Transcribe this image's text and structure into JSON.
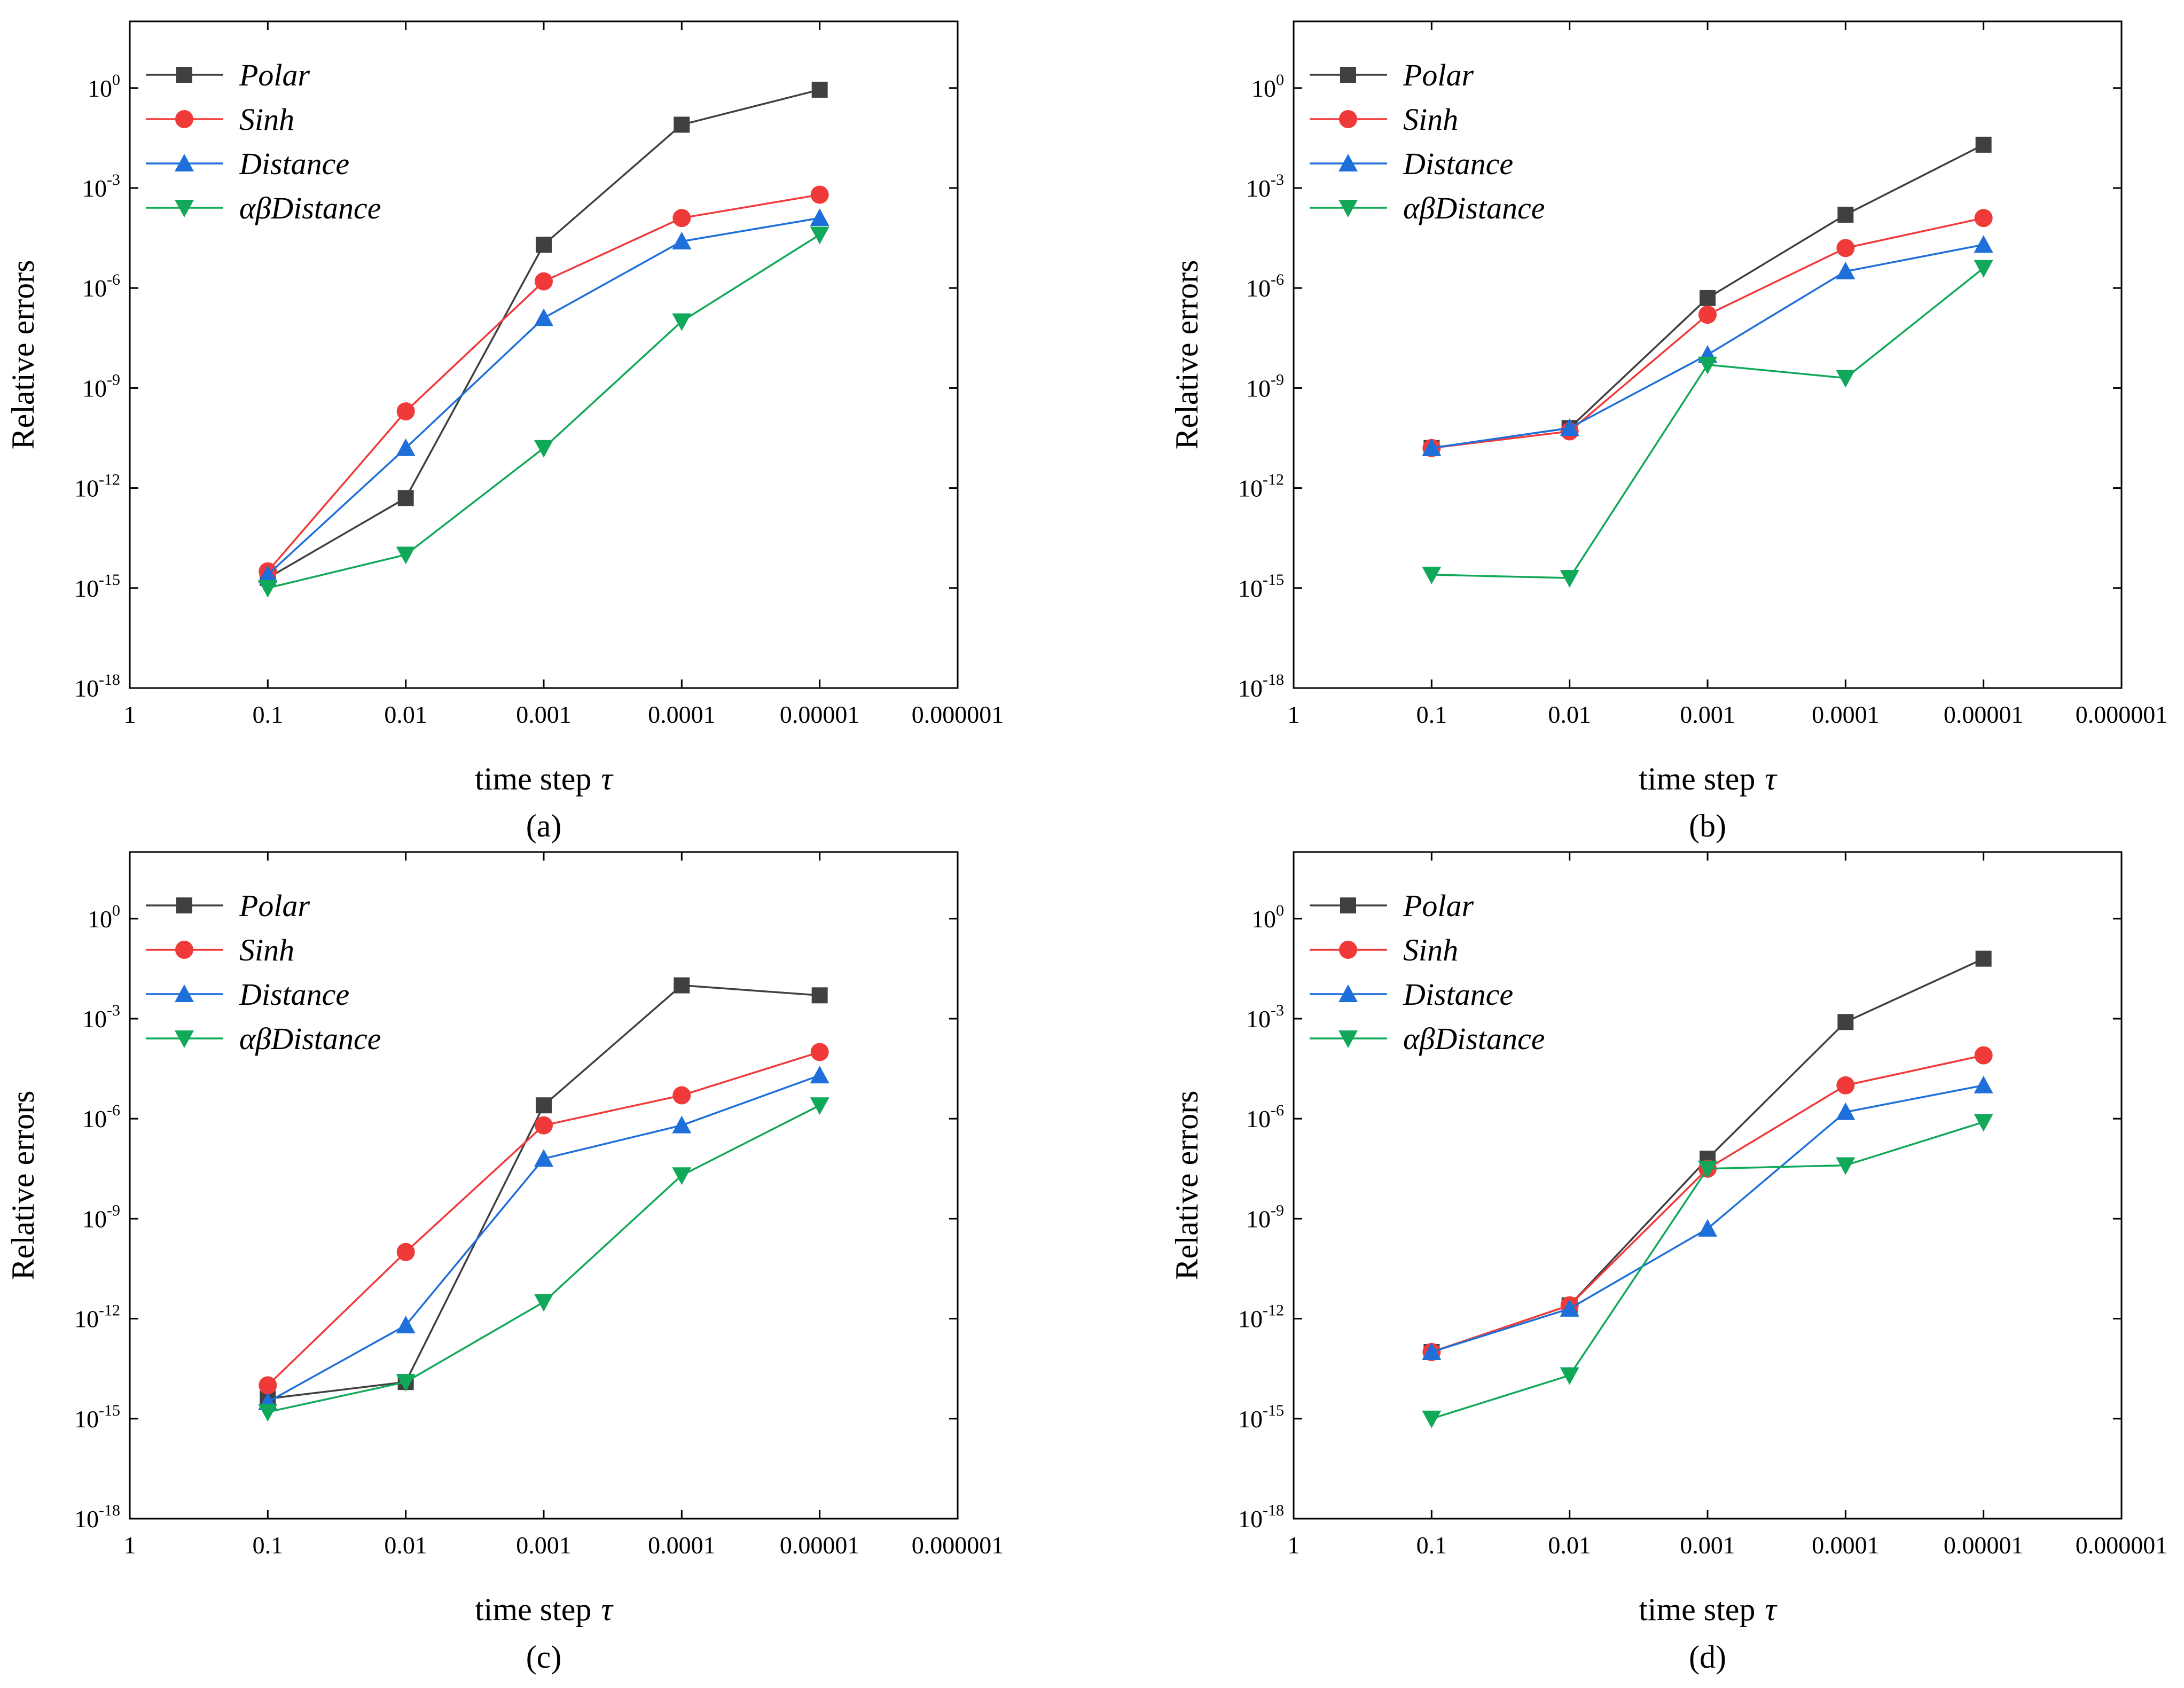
{
  "chart_data": [
    {
      "id": "a",
      "caption": "(a)",
      "type": "line",
      "xscale": "log-reversed",
      "yscale": "log",
      "xlabel": "time step",
      "xlabel_symbol": "τ",
      "ylabel": "Relative errors",
      "xlim": [
        1,
        1e-06
      ],
      "ylim_exponents": [
        -18,
        2
      ],
      "x_ticks": [
        "1",
        "0.1",
        "0.01",
        "0.001",
        "0.0001",
        "0.00001",
        "0.000001"
      ],
      "y_tick_exponents": [
        "-18",
        "-15",
        "-12",
        "-9",
        "-6",
        "-3",
        "0"
      ],
      "legend_position": "top-left",
      "x": [
        0.1,
        0.01,
        0.001,
        0.0001,
        1e-05
      ],
      "series": [
        {
          "name": "Polar",
          "color": "#404040",
          "marker": "square",
          "log10_values": [
            -14.7,
            -12.3,
            -4.7,
            -1.1,
            -0.05
          ]
        },
        {
          "name": "Sinh",
          "color": "#f03a3a",
          "marker": "circle",
          "log10_values": [
            -14.5,
            -9.7,
            -5.8,
            -3.9,
            -3.2
          ]
        },
        {
          "name": "Distance",
          "color": "#1e6fd9",
          "marker": "triangle-up",
          "log10_values": [
            -14.6,
            -10.8,
            -6.9,
            -4.6,
            -3.9
          ]
        },
        {
          "name": "αβDistance",
          "color": "#12a85a",
          "marker": "triangle-down",
          "log10_values": [
            -15.0,
            -14.0,
            -10.8,
            -7.0,
            -4.4
          ]
        }
      ]
    },
    {
      "id": "b",
      "caption": "(b)",
      "type": "line",
      "xscale": "log-reversed",
      "yscale": "log",
      "xlabel": "time step",
      "xlabel_symbol": "τ",
      "ylabel": "Relative errors",
      "xlim": [
        1,
        1e-06
      ],
      "ylim_exponents": [
        -18,
        2
      ],
      "x_ticks": [
        "1",
        "0.1",
        "0.01",
        "0.001",
        "0.0001",
        "0.00001",
        "0.000001"
      ],
      "y_tick_exponents": [
        "-18",
        "-15",
        "-12",
        "-9",
        "-6",
        "-3",
        "0"
      ],
      "legend_position": "top-left",
      "x": [
        0.1,
        0.01,
        0.001,
        0.0001,
        1e-05
      ],
      "series": [
        {
          "name": "Polar",
          "color": "#404040",
          "marker": "square",
          "log10_values": [
            -10.8,
            -10.2,
            -6.3,
            -3.8,
            -1.7
          ]
        },
        {
          "name": "Sinh",
          "color": "#f03a3a",
          "marker": "circle",
          "log10_values": [
            -10.8,
            -10.3,
            -6.8,
            -4.8,
            -3.9
          ]
        },
        {
          "name": "Distance",
          "color": "#1e6fd9",
          "marker": "triangle-up",
          "log10_values": [
            -10.8,
            -10.2,
            -8.0,
            -5.5,
            -4.7
          ]
        },
        {
          "name": "αβDistance",
          "color": "#12a85a",
          "marker": "triangle-down",
          "log10_values": [
            -14.6,
            -14.7,
            -8.3,
            -8.7,
            -5.4
          ]
        }
      ]
    },
    {
      "id": "c",
      "caption": "(c)",
      "type": "line",
      "xscale": "log-reversed",
      "yscale": "log",
      "xlabel": "time step",
      "xlabel_symbol": "τ",
      "ylabel": "Relative errors",
      "xlim": [
        1,
        1e-06
      ],
      "ylim_exponents": [
        -18,
        2
      ],
      "x_ticks": [
        "1",
        "0.1",
        "0.01",
        "0.001",
        "0.0001",
        "0.00001",
        "0.000001"
      ],
      "y_tick_exponents": [
        "-18",
        "-15",
        "-12",
        "-9",
        "-6",
        "-3",
        "0"
      ],
      "legend_position": "top-left",
      "x": [
        0.1,
        0.01,
        0.001,
        0.0001,
        1e-05
      ],
      "series": [
        {
          "name": "Polar",
          "color": "#404040",
          "marker": "square",
          "log10_values": [
            -14.4,
            -13.9,
            -5.6,
            -2.0,
            -2.3
          ]
        },
        {
          "name": "Sinh",
          "color": "#f03a3a",
          "marker": "circle",
          "log10_values": [
            -14.0,
            -10.0,
            -6.2,
            -5.3,
            -4.0
          ]
        },
        {
          "name": "Distance",
          "color": "#1e6fd9",
          "marker": "triangle-up",
          "log10_values": [
            -14.5,
            -12.2,
            -7.2,
            -6.2,
            -4.7
          ]
        },
        {
          "name": "αβDistance",
          "color": "#12a85a",
          "marker": "triangle-down",
          "log10_values": [
            -14.8,
            -13.9,
            -11.5,
            -7.7,
            -5.6
          ]
        }
      ]
    },
    {
      "id": "d",
      "caption": "(d)",
      "type": "line",
      "xscale": "log-reversed",
      "yscale": "log",
      "xlabel": "time step",
      "xlabel_symbol": "τ",
      "ylabel": "Relative errors",
      "xlim": [
        1,
        1e-06
      ],
      "ylim_exponents": [
        -18,
        2
      ],
      "x_ticks": [
        "1",
        "0.1",
        "0.01",
        "0.001",
        "0.0001",
        "0.00001",
        "0.000001"
      ],
      "y_tick_exponents": [
        "-18",
        "-15",
        "-12",
        "-9",
        "-6",
        "-3",
        "0"
      ],
      "legend_position": "top-left",
      "x": [
        0.1,
        0.01,
        0.001,
        0.0001,
        1e-05
      ],
      "series": [
        {
          "name": "Polar",
          "color": "#404040",
          "marker": "square",
          "log10_values": [
            -13.0,
            -11.6,
            -7.2,
            -3.1,
            -1.2
          ]
        },
        {
          "name": "Sinh",
          "color": "#f03a3a",
          "marker": "circle",
          "log10_values": [
            -13.0,
            -11.6,
            -7.5,
            -5.0,
            -4.1
          ]
        },
        {
          "name": "Distance",
          "color": "#1e6fd9",
          "marker": "triangle-up",
          "log10_values": [
            -13.0,
            -11.7,
            -9.3,
            -5.8,
            -5.0
          ]
        },
        {
          "name": "αβDistance",
          "color": "#12a85a",
          "marker": "triangle-down",
          "log10_values": [
            -15.0,
            -13.7,
            -7.5,
            -7.4,
            -6.1
          ]
        }
      ]
    }
  ]
}
